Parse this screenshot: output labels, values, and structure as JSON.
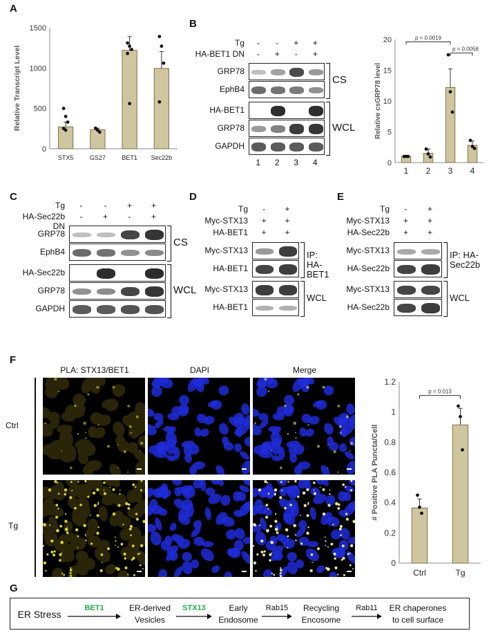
{
  "panels": {
    "A": {
      "label": "A",
      "chart_data": {
        "type": "bar",
        "categories": [
          "STX5",
          "GS27",
          "BET1",
          "Sec22b"
        ],
        "values": [
          270,
          235,
          1220,
          995
        ],
        "errors": [
          60,
          20,
          170,
          210
        ],
        "points": [
          [
            500,
            400,
            330,
            250,
            230
          ],
          [
            255,
            230,
            205
          ],
          [
            1310,
            1270,
            1230,
            1180,
            560
          ],
          [
            1390,
            1270,
            1060,
            580
          ]
        ],
        "ylabel": "Relative Transcript Level",
        "ylim": [
          0,
          1500
        ],
        "yticks": [
          "0",
          "500",
          "1000",
          "1500"
        ],
        "bar_color": "#cfc6a0"
      }
    },
    "B": {
      "label": "B",
      "top_rows": [
        {
          "name": "Tg",
          "signs": [
            "-",
            "-",
            "+",
            "+"
          ]
        },
        {
          "name": "HA-BET1 DN",
          "signs": [
            "-",
            "+",
            "-",
            "+"
          ]
        }
      ],
      "rows": [
        "GRP78",
        "EphB4",
        "HA-BET1",
        "GRP78",
        "GAPDH"
      ],
      "groups": [
        "CS",
        "WCL"
      ],
      "lanes": [
        "1",
        "2",
        "3",
        "4"
      ],
      "chart_data": {
        "type": "bar",
        "categories": [
          "1",
          "2",
          "3",
          "4"
        ],
        "values": [
          1,
          1.5,
          12.2,
          2.8
        ],
        "errors": [
          0.1,
          0.7,
          3.0,
          0.7
        ],
        "points": [
          [
            1,
            1,
            1
          ],
          [
            2.2,
            1.4,
            0.9
          ],
          [
            17.5,
            11.5,
            8.2
          ],
          [
            3.6,
            2.6,
            2.3
          ]
        ],
        "ylabel": "Relative csGRP78 level",
        "ylim": [
          0,
          20
        ],
        "yticks": [
          "0",
          "5",
          "10",
          "15",
          "20"
        ],
        "annotations": [
          "p = 0.0019",
          "p = 0.0058"
        ],
        "bar_color": "#cfc6a0"
      }
    },
    "C": {
      "label": "C",
      "top_rows": [
        {
          "name": "Tg",
          "signs": [
            "-",
            "-",
            "+",
            "+"
          ]
        },
        {
          "name": "HA-Sec22b DN",
          "signs": [
            "-",
            "+",
            "-",
            "+"
          ]
        }
      ],
      "rows": [
        "GRP78",
        "EphB4",
        "HA-Sec22b",
        "GRP78",
        "GAPDH"
      ],
      "groups": [
        "CS",
        "WCL"
      ]
    },
    "D": {
      "label": "D",
      "top_rows": [
        {
          "name": "Tg",
          "signs": [
            "-",
            "+"
          ]
        },
        {
          "name": "Myc-STX13",
          "signs": [
            "+",
            "+"
          ]
        },
        {
          "name": "HA-BET1",
          "signs": [
            "+",
            "+"
          ]
        }
      ],
      "rows": [
        "Myc-STX13",
        "HA-BET1",
        "Myc-STX13",
        "HA-BET1"
      ],
      "groups": [
        "IP: HA-\nBET1",
        "WCL"
      ]
    },
    "E": {
      "label": "E",
      "top_rows": [
        {
          "name": "Tg",
          "signs": [
            "-",
            "+"
          ]
        },
        {
          "name": "Myc-STX13",
          "signs": [
            "+",
            "+"
          ]
        },
        {
          "name": "HA-Sec22b",
          "signs": [
            "+",
            "+"
          ]
        }
      ],
      "rows": [
        "Myc-STX13",
        "HA-Sec22b",
        "Myc-STX13",
        "HA-Sec22b"
      ],
      "groups": [
        "IP: HA-\nSec22b",
        "WCL"
      ]
    },
    "F": {
      "label": "F",
      "col_titles": [
        "PLA: STX13/BET1",
        "DAPI",
        "Merge"
      ],
      "row_titles": [
        "Ctrl",
        "Tg"
      ],
      "title_colors": [
        "#b9b23a",
        "#2d6fd6",
        "#b9b23a"
      ],
      "chart_data": {
        "type": "bar",
        "categories": [
          "Ctrl",
          "Tg"
        ],
        "values": [
          0.365,
          0.915
        ],
        "errors": [
          0.06,
          0.11
        ],
        "points": [
          [
            0.45,
            0.37,
            0.33
          ],
          [
            1.04,
            0.97,
            0.75
          ]
        ],
        "ylabel": "# Positive PLA Puncta/Cell",
        "ylim": [
          0,
          1.2
        ],
        "yticks": [
          "0",
          "0.2",
          "0.4",
          "0.6",
          "0.8",
          "1",
          "1.2"
        ],
        "annotations": [
          "p = 0.013"
        ],
        "bar_color": "#cfc6a0"
      }
    },
    "G": {
      "label": "G",
      "steps": [
        "ER Stress",
        "ER-derived\nVesicles",
        "Early\nEndosome",
        "Recycling\nEncosome",
        "ER chaperones\nto cell surface"
      ],
      "arrow_labels": [
        "",
        "BET1",
        "STX13",
        "Rab15",
        "Rab11"
      ],
      "highlight_color": "#1fae4b"
    }
  }
}
